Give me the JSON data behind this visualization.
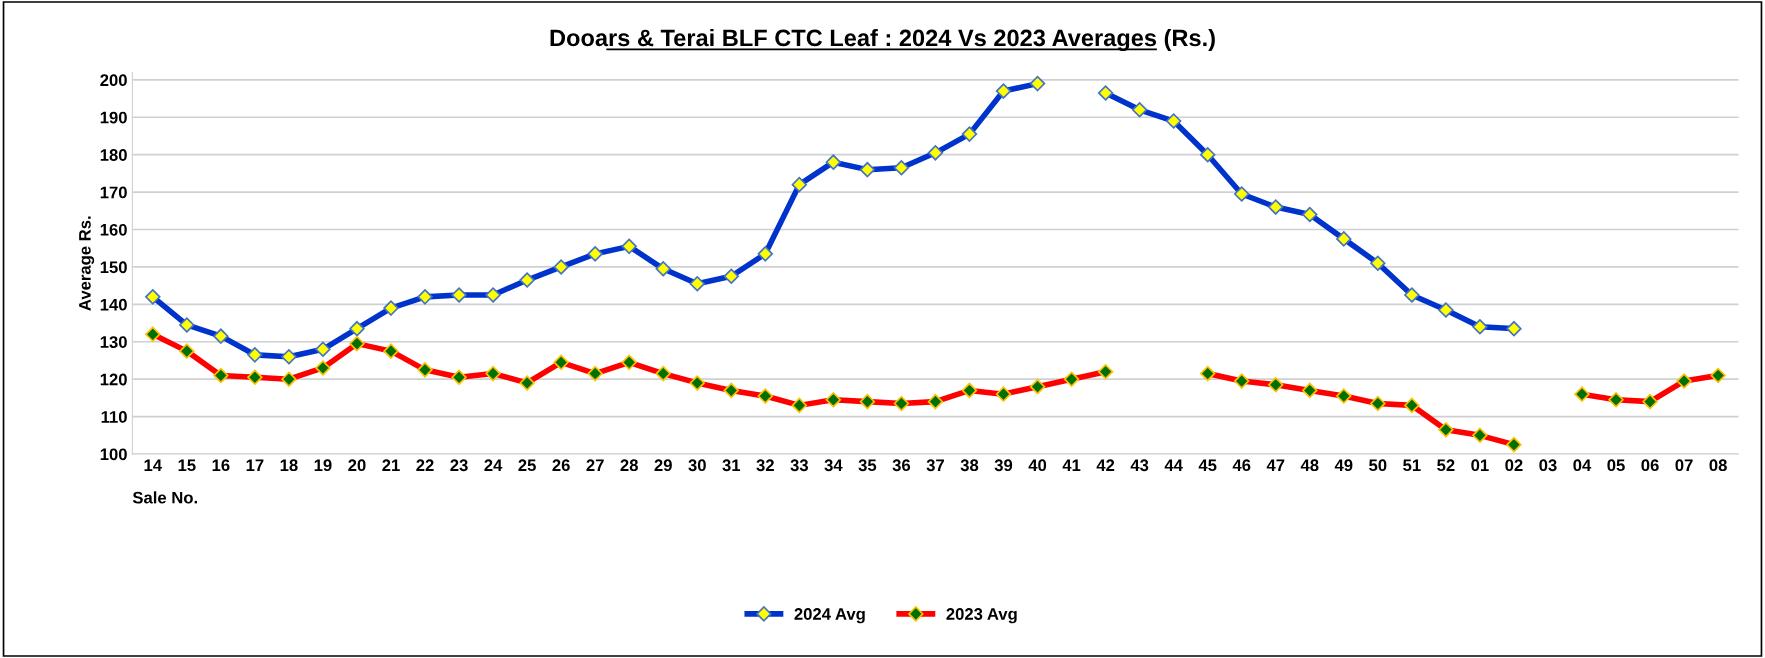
{
  "chart_data": {
    "type": "line",
    "title": "Dooars & Terai BLF CTC Leaf : 2024 Vs 2023 Averages (Rs.)",
    "xlabel": "Sale No.",
    "ylabel": "Average Rs.",
    "categories": [
      "14",
      "15",
      "16",
      "17",
      "18",
      "19",
      "20",
      "21",
      "22",
      "23",
      "24",
      "25",
      "26",
      "27",
      "28",
      "29",
      "30",
      "31",
      "32",
      "33",
      "34",
      "35",
      "36",
      "37",
      "38",
      "39",
      "40",
      "41",
      "42",
      "43",
      "44",
      "45",
      "46",
      "47",
      "48",
      "49",
      "50",
      "51",
      "52",
      "01",
      "02",
      "03",
      "04",
      "05",
      "06",
      "07",
      "08"
    ],
    "series": [
      {
        "name": "2024 Avg",
        "color": "#0033cc",
        "values": [
          142,
          134.5,
          131.5,
          126.5,
          126,
          128,
          133.5,
          139,
          142,
          142.5,
          142.5,
          146.5,
          150,
          153.5,
          155.5,
          149.5,
          145.5,
          147.5,
          153.5,
          172,
          178,
          176,
          176.5,
          180.5,
          185.5,
          197,
          199,
          null,
          196.5,
          192,
          189,
          180,
          169.5,
          166,
          164,
          157.5,
          151,
          142.5,
          138.5,
          134,
          133.5,
          null,
          null,
          null,
          null,
          null,
          null
        ]
      },
      {
        "name": "2023 Avg",
        "color": "#ff0000",
        "values": [
          132,
          127.5,
          121,
          120.5,
          120,
          123,
          129.5,
          127.5,
          122.5,
          120.5,
          121.5,
          119,
          124.5,
          121.5,
          124.5,
          121.5,
          119,
          117,
          115.5,
          113,
          114.5,
          114,
          113.5,
          114,
          117,
          116,
          118,
          120,
          122,
          null,
          null,
          121.5,
          119.5,
          118.5,
          117,
          115.5,
          113.5,
          113,
          106.5,
          105,
          102.5,
          null,
          116,
          114.5,
          114,
          119.5,
          121
        ]
      }
    ],
    "ylim": [
      100,
      202
    ],
    "yticks": [
      100,
      110,
      120,
      130,
      140,
      150,
      160,
      170,
      180,
      190,
      200
    ],
    "grid": "y",
    "legend": "bottom",
    "marker": "diamond",
    "line_style": "solid"
  }
}
